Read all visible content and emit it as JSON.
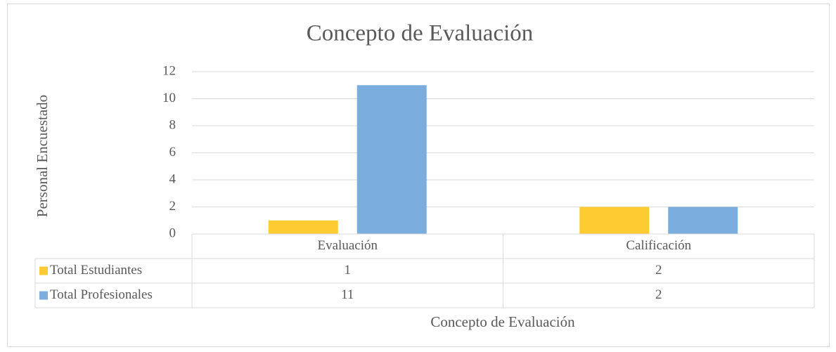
{
  "chart_data": {
    "type": "bar",
    "title": "Concepto de Evaluación",
    "x_label": "Concepto de Evaluación",
    "y_label": "Personal Encuestado",
    "categories": [
      "Evaluación",
      "Calificación"
    ],
    "series": [
      {
        "name": "Total Estudiantes",
        "color": "#ffcb33",
        "values": [
          1,
          2
        ]
      },
      {
        "name": "Total Profesionales",
        "color": "#7badde",
        "values": [
          11,
          2
        ]
      }
    ],
    "ylim": [
      0,
      12
    ],
    "yticks": [
      0,
      2,
      4,
      6,
      8,
      10,
      12
    ],
    "grid": true,
    "data_table": true
  }
}
